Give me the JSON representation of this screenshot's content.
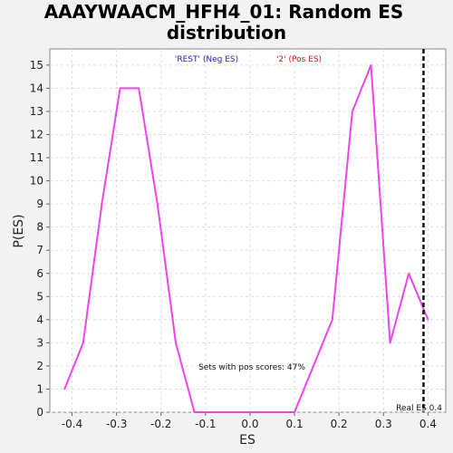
{
  "chart_data": {
    "type": "line",
    "title_line1": "AAAYWAACM_HFH4_01: Random ES",
    "title_line2": "distribution",
    "xlabel": "ES",
    "ylabel": "P(ES)",
    "xlim": [
      -0.45,
      0.44
    ],
    "ylim": [
      0,
      15.7
    ],
    "xticks": [
      "-0.4",
      "-0.3",
      "-0.2",
      "-0.1",
      "0.0",
      "0.1",
      "0.2",
      "0.3",
      "0.4"
    ],
    "xtick_values": [
      -0.4,
      -0.3,
      -0.2,
      -0.1,
      0.0,
      0.1,
      0.2,
      0.3,
      0.4
    ],
    "yticks": [
      "0",
      "1",
      "2",
      "3",
      "4",
      "5",
      "6",
      "7",
      "8",
      "9",
      "10",
      "11",
      "12",
      "13",
      "14",
      "15"
    ],
    "ytick_values": [
      0,
      1,
      2,
      3,
      4,
      5,
      6,
      7,
      8,
      9,
      10,
      11,
      12,
      13,
      14,
      15
    ],
    "grid": true,
    "legend": [
      {
        "label": "'REST' (Neg ES)",
        "color": "#2222cc"
      },
      {
        "label": "'2' (Pos ES)",
        "color": "#dd1111"
      }
    ],
    "series": [
      {
        "color": "#ee44ee",
        "x": [
          -0.417,
          -0.375,
          -0.333,
          -0.292,
          -0.25,
          -0.208,
          -0.167,
          -0.125,
          -0.083,
          -0.042,
          0.0,
          0.042,
          0.1,
          0.185,
          0.23,
          0.272,
          0.315,
          0.357,
          0.4
        ],
        "y": [
          1,
          3,
          9,
          14,
          14,
          9,
          3,
          0,
          0,
          0,
          0,
          0,
          0,
          4,
          13,
          15,
          3,
          6,
          4
        ]
      }
    ],
    "real_es": 0.39,
    "real_es_label": "Real ES 0.4",
    "annotation": "Sets with pos scores: 47%"
  }
}
